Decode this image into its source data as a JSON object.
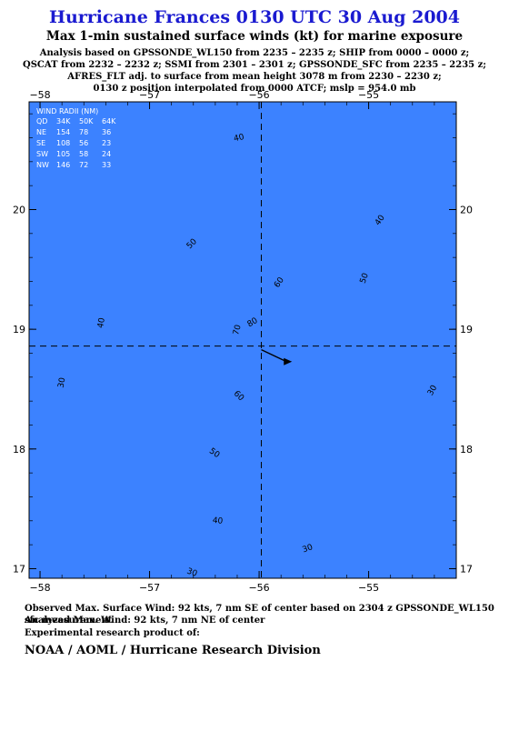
{
  "header": {
    "title": "Hurricane Frances 0130 UTC 30 Aug 2004",
    "subtitle": "Max 1-min sustained surface winds (kt) for marine exposure",
    "info_lines": [
      "Analysis based on  GPSSONDE_WL150 from 2235 – 2235 z;  SHIP from 0000 – 0000 z;",
      "QSCAT from 2232 – 2232 z;  SSMI from 2301 – 2301 z;  GPSSONDE_SFC from 2235 – 2235 z;",
      "AFRES_FLT adj. to surface from mean height 3078 m from 2230 – 2230 z;",
      "0130 z position interpolated from 0000 ATCF; mslp = 954.0 mb"
    ]
  },
  "footer": {
    "observed": "Observed Max. Surface Wind: 92 kts, 7 nm SE of center based on 2304 z GPSSONDE_WL150 sfc measurement",
    "analyzed": "Analyzed Max. Wind: 92 kts, 7 nm NE of center",
    "experimental": "Experimental research product of:",
    "organization": "NOAA / AOML / Hurricane Research Division"
  },
  "wind_radii": {
    "header": "WIND RADII (NM)",
    "columns": [
      "QD",
      "34K",
      "50K",
      "64K"
    ],
    "rows": [
      [
        "NE",
        "154",
        "78",
        "36"
      ],
      [
        "SE",
        "108",
        "56",
        "23"
      ],
      [
        "SW",
        "105",
        "58",
        "24"
      ],
      [
        "NW",
        "146",
        "72",
        "33"
      ]
    ]
  },
  "colors": {
    "c20": "#3c82ff",
    "c30": "#1ea0ff",
    "c40": "#00caff",
    "c50": "#3ef0e8",
    "c55": "#78e8a0",
    "c60": "#46d23c",
    "c65": "#a6e63c",
    "c70": "#f0f03c",
    "c80": "#ffc832",
    "c85": "#ff8228",
    "c90": "#e62814",
    "center": "#101010"
  },
  "chart_data": {
    "type": "contour",
    "x_ticks": [
      -58,
      -57,
      -56,
      -55
    ],
    "y_ticks": [
      17,
      18,
      19,
      20
    ],
    "xlim": [
      -58.1,
      -54.2
    ],
    "ylim": [
      16.92,
      20.9
    ],
    "center": {
      "lon": -55.98,
      "lat": 18.86
    },
    "motion_to": {
      "lon": -55.7,
      "lat": 18.73
    },
    "contour_levels": [
      30,
      40,
      50,
      60,
      70,
      80,
      90
    ],
    "contour_labels": [
      {
        "text": "30",
        "lon": -57.78,
        "lat": 18.55,
        "angle": -80
      },
      {
        "text": "30",
        "lon": -55.55,
        "lat": 17.15,
        "angle": -20
      },
      {
        "text": "30",
        "lon": -56.62,
        "lat": 16.95,
        "angle": 20
      },
      {
        "text": "30",
        "lon": -54.4,
        "lat": 18.48,
        "angle": -60
      },
      {
        "text": "40",
        "lon": -56.18,
        "lat": 20.58,
        "angle": -12
      },
      {
        "text": "40",
        "lon": -57.42,
        "lat": 19.05,
        "angle": -80
      },
      {
        "text": "40",
        "lon": -56.38,
        "lat": 17.38,
        "angle": 5
      },
      {
        "text": "40",
        "lon": -54.88,
        "lat": 19.9,
        "angle": -55
      },
      {
        "text": "50",
        "lon": -56.6,
        "lat": 19.7,
        "angle": -45
      },
      {
        "text": "50",
        "lon": -55.02,
        "lat": 19.42,
        "angle": -70
      },
      {
        "text": "50",
        "lon": -56.42,
        "lat": 17.95,
        "angle": 35
      },
      {
        "text": "60",
        "lon": -55.8,
        "lat": 19.38,
        "angle": -55
      },
      {
        "text": "60",
        "lon": -56.2,
        "lat": 18.43,
        "angle": 45
      },
      {
        "text": "70",
        "lon": -56.18,
        "lat": 18.99,
        "angle": -75
      },
      {
        "text": "80",
        "lon": -56.05,
        "lat": 19.04,
        "angle": -30
      }
    ]
  }
}
